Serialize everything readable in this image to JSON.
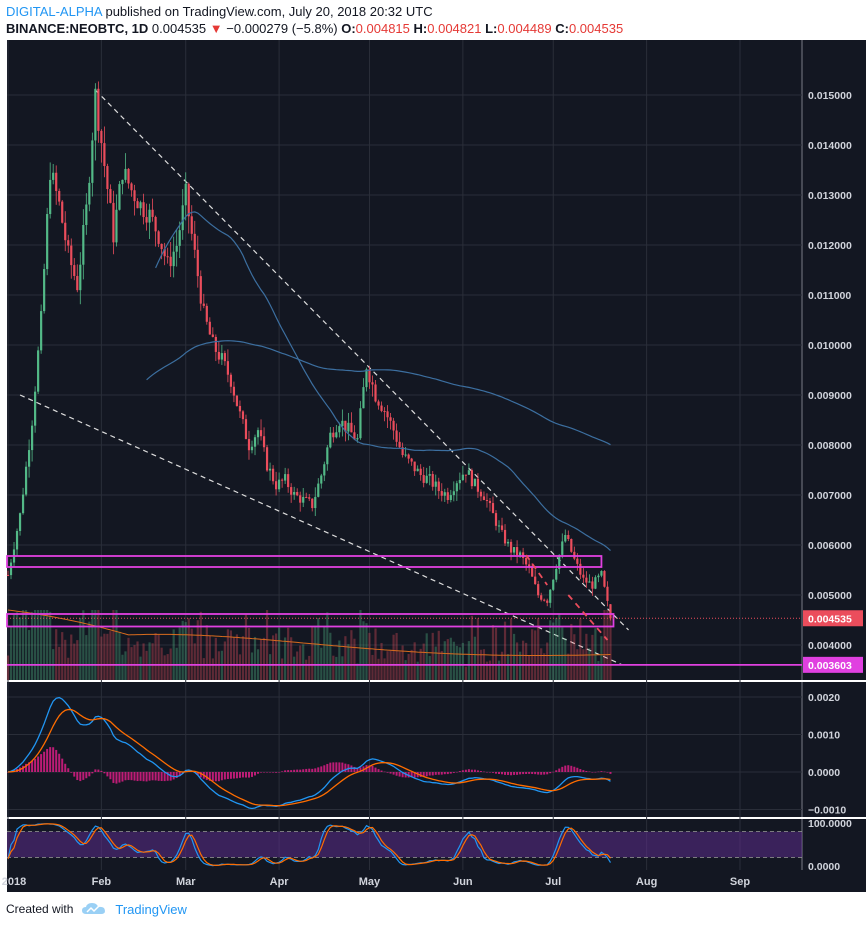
{
  "header": {
    "author": "DIGITAL-ALPHA",
    "published": "published on TradingView.com, July 20, 2018 20:32 UTC",
    "symbol": "BINANCE:NEOBTC, 1D",
    "last": "0.004535",
    "change": "−0.000279 (−5.8%)",
    "o_label": "O:",
    "o_value": "0.004815",
    "h_label": "H:",
    "h_value": "0.004821",
    "l_label": "L:",
    "l_value": "0.004489",
    "c_label": "C:",
    "c_value": "0.004535"
  },
  "footer": {
    "created_with": "Created with",
    "brand": "TradingView"
  },
  "colors": {
    "background": "#131722",
    "bull": "#53b987",
    "bear": "#eb4d5c",
    "ma_blue": "#3c6fa0",
    "ma_orange": "#d96c1e",
    "magenta": "#e040e0",
    "trendline": "#dddddd",
    "axis_bg": "#131722",
    "axis_text": "#d1d4dc"
  },
  "chart_data": [
    {
      "type": "candlestick",
      "panel": "price",
      "x_tick_labels": [
        "2018",
        "Feb",
        "Mar",
        "Apr",
        "May",
        "Jun",
        "Jul",
        "Aug",
        "Sep"
      ],
      "x_ticks_dates": [
        "2018-01-01",
        "2018-02-01",
        "2018-03-01",
        "2018-04-01",
        "2018-05-01",
        "2018-06-01",
        "2018-07-01",
        "2018-08-01",
        "2018-09-01"
      ],
      "y_tick_labels": [
        "0.015000",
        "0.014000",
        "0.013000",
        "0.012000",
        "0.011000",
        "0.010000",
        "0.009000",
        "0.008000",
        "0.007000",
        "0.006000",
        "0.005000",
        "0.004000"
      ],
      "ylim": [
        0.0033,
        0.0161
      ],
      "price_labels": [
        "0.004535",
        "0.003603"
      ],
      "close_series": [
        [
          "2018-01-01",
          0.0054
        ],
        [
          "2018-01-05",
          0.0066
        ],
        [
          "2018-01-09",
          0.0085
        ],
        [
          "2018-01-12",
          0.0105
        ],
        [
          "2018-01-15",
          0.0135
        ],
        [
          "2018-01-18",
          0.0128
        ],
        [
          "2018-01-21",
          0.0118
        ],
        [
          "2018-01-24",
          0.0112
        ],
        [
          "2018-01-27",
          0.0127
        ],
        [
          "2018-01-30",
          0.015
        ],
        [
          "2018-02-02",
          0.0136
        ],
        [
          "2018-02-05",
          0.0122
        ],
        [
          "2018-02-08",
          0.0135
        ],
        [
          "2018-02-11",
          0.0131
        ],
        [
          "2018-02-14",
          0.0128
        ],
        [
          "2018-02-17",
          0.0126
        ],
        [
          "2018-02-20",
          0.0122
        ],
        [
          "2018-02-23",
          0.0116
        ],
        [
          "2018-02-26",
          0.012
        ],
        [
          "2018-03-01",
          0.013
        ],
        [
          "2018-03-04",
          0.0118
        ],
        [
          "2018-03-07",
          0.0106
        ],
        [
          "2018-03-10",
          0.01
        ],
        [
          "2018-03-13",
          0.0097
        ],
        [
          "2018-03-16",
          0.0093
        ],
        [
          "2018-03-19",
          0.0086
        ],
        [
          "2018-03-22",
          0.008
        ],
        [
          "2018-03-25",
          0.0083
        ],
        [
          "2018-03-28",
          0.0076
        ],
        [
          "2018-03-31",
          0.0072
        ],
        [
          "2018-04-03",
          0.0073
        ],
        [
          "2018-04-06",
          0.007
        ],
        [
          "2018-04-09",
          0.0069
        ],
        [
          "2018-04-12",
          0.0068
        ],
        [
          "2018-04-15",
          0.0074
        ],
        [
          "2018-04-18",
          0.0082
        ],
        [
          "2018-04-21",
          0.0085
        ],
        [
          "2018-04-24",
          0.0083
        ],
        [
          "2018-04-27",
          0.0081
        ],
        [
          "2018-04-30",
          0.0096
        ],
        [
          "2018-05-03",
          0.009
        ],
        [
          "2018-05-06",
          0.0087
        ],
        [
          "2018-05-09",
          0.0083
        ],
        [
          "2018-05-12",
          0.0078
        ],
        [
          "2018-05-15",
          0.0076
        ],
        [
          "2018-05-18",
          0.0074
        ],
        [
          "2018-05-21",
          0.0073
        ],
        [
          "2018-05-24",
          0.0071
        ],
        [
          "2018-05-27",
          0.007
        ],
        [
          "2018-05-30",
          0.0073
        ],
        [
          "2018-06-02",
          0.0075
        ],
        [
          "2018-06-05",
          0.0072
        ],
        [
          "2018-06-08",
          0.007
        ],
        [
          "2018-06-11",
          0.0066
        ],
        [
          "2018-06-14",
          0.0062
        ],
        [
          "2018-06-17",
          0.0059
        ],
        [
          "2018-06-20",
          0.0058
        ],
        [
          "2018-06-23",
          0.0055
        ],
        [
          "2018-06-26",
          0.005
        ],
        [
          "2018-06-29",
          0.0049
        ],
        [
          "2018-07-02",
          0.0056
        ],
        [
          "2018-07-05",
          0.0062
        ],
        [
          "2018-07-08",
          0.0057
        ],
        [
          "2018-07-11",
          0.0053
        ],
        [
          "2018-07-14",
          0.0052
        ],
        [
          "2018-07-17",
          0.0054
        ],
        [
          "2018-07-20",
          0.004535
        ]
      ]
    },
    {
      "type": "line",
      "panel": "macd",
      "y_tick_labels": [
        "0.0020",
        "0.0010",
        "0.0000",
        "−0.0010"
      ],
      "ylim": [
        -0.0012,
        0.0024
      ]
    },
    {
      "type": "line",
      "panel": "oscillator",
      "y_tick_labels": [
        "100.0000",
        "0.0000"
      ],
      "ylim": [
        0,
        100
      ]
    }
  ]
}
